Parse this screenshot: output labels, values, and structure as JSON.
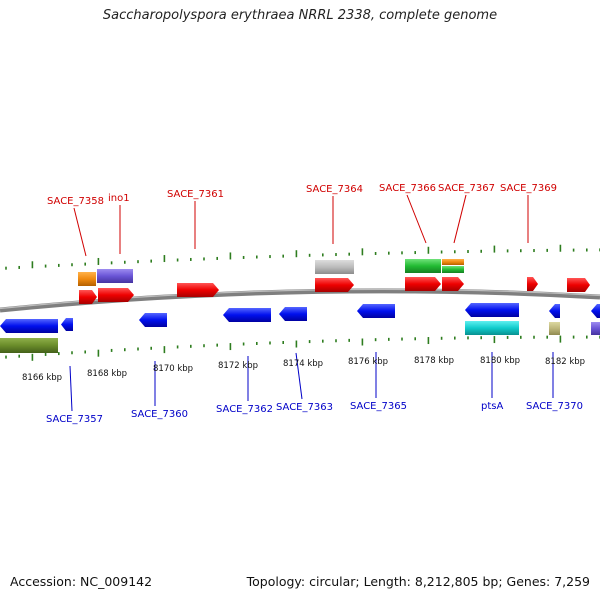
{
  "title": "Saccharopolyspora erythraea NRRL 2338, complete genome",
  "footer": {
    "accession": "Accession: NC_009142",
    "summary": "Topology: circular; Length: 8,212,805 bp; Genes: 7,259"
  },
  "colors": {
    "fwd_label": "#d00000",
    "rev_label": "#0000c8",
    "backbone": "#7f7f7f",
    "tick": "#2e7d1f"
  },
  "scale": {
    "labels": [
      "8166 kbp",
      "8168 kbp",
      "8170 kbp",
      "8172 kbp",
      "8174 kbp",
      "8176 kbp",
      "8178 kbp",
      "8180 kbp",
      "8182 kbp"
    ]
  },
  "genes_forward": [
    {
      "name": "SACE_7358",
      "color": "red"
    },
    {
      "name": "ino1",
      "color": "red"
    },
    {
      "name": "SACE_7361",
      "color": "red"
    },
    {
      "name": "SACE_7364",
      "color": "red"
    },
    {
      "name": "SACE_7366",
      "color": "red"
    },
    {
      "name": "SACE_7367",
      "color": "red"
    },
    {
      "name": "SACE_7369",
      "color": "red"
    }
  ],
  "genes_reverse": [
    {
      "name": "SACE_7357",
      "color": "blue"
    },
    {
      "name": "SACE_7360",
      "color": "blue"
    },
    {
      "name": "SACE_7362",
      "color": "blue"
    },
    {
      "name": "SACE_7363",
      "color": "blue"
    },
    {
      "name": "SACE_7365",
      "color": "blue"
    },
    {
      "name": "ptsA",
      "color": "blue"
    },
    {
      "name": "SACE_7370",
      "color": "blue"
    }
  ]
}
